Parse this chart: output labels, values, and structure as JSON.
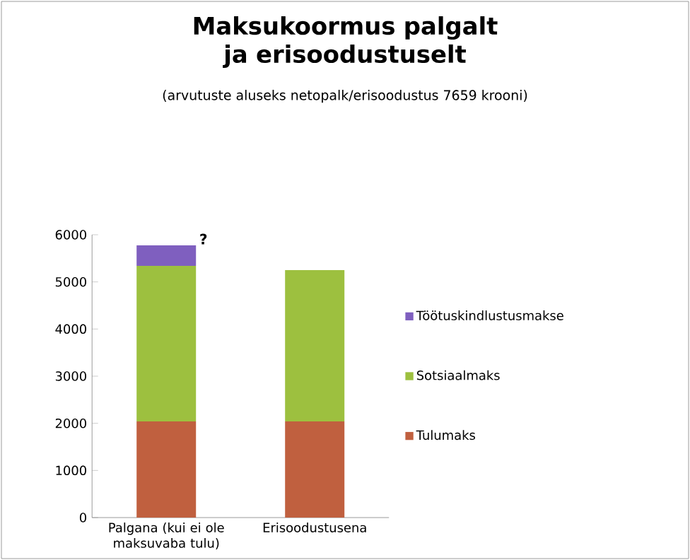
{
  "chart_data": {
    "type": "bar",
    "stacked": true,
    "title": "Maksukoormus palgalt ja erisoodustuselt",
    "subtitle": "(arvutuste aluseks netopalk/erisoodustus  7659 krooni)",
    "categories": [
      "Palgana (kui ei ole maksuvaba tulu)",
      "Erisoodustusena"
    ],
    "series": [
      {
        "name": "Tulumaks",
        "color": "#c0603f",
        "values": [
          2040,
          2040
        ]
      },
      {
        "name": "Sotsiaalmaks",
        "color": "#9dc03f",
        "values": [
          3300,
          3210
        ]
      },
      {
        "name": "Töötuskindlustusmakse",
        "color": "#7f5fbf",
        "values": [
          435,
          null
        ]
      }
    ],
    "ylim": [
      0,
      6000
    ],
    "yticks": [
      0,
      1000,
      2000,
      3000,
      4000,
      5000,
      6000
    ],
    "grid": false,
    "legend": "right",
    "annotations": [
      "?"
    ]
  }
}
